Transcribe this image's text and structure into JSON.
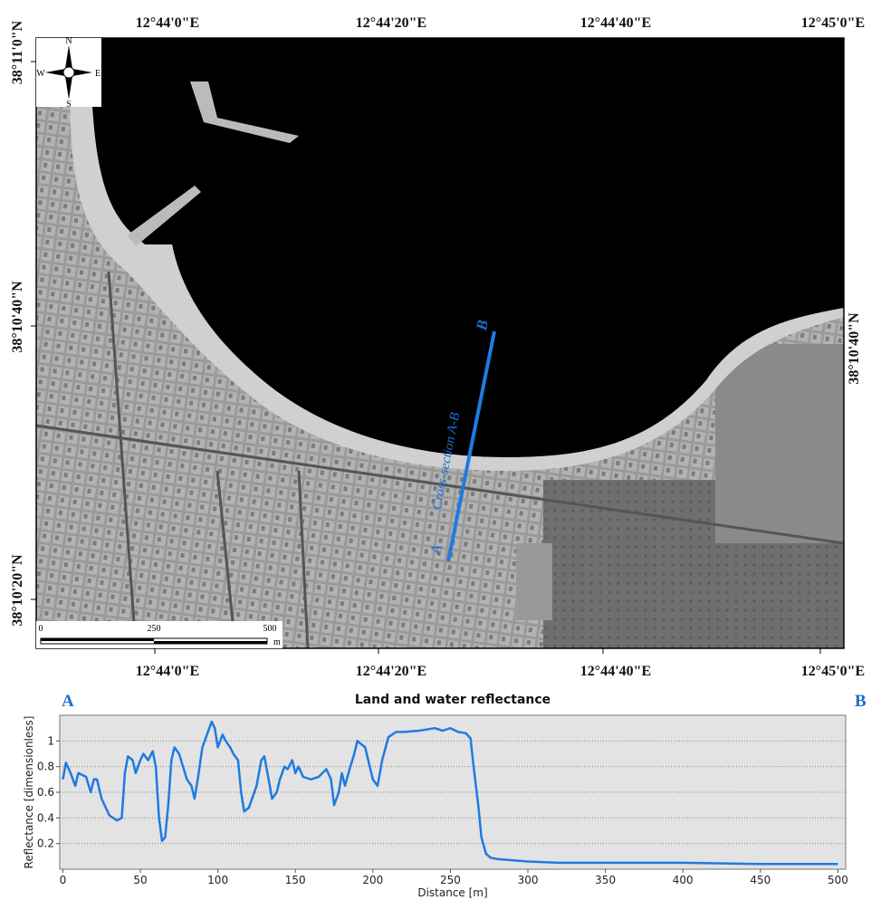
{
  "map": {
    "top_lon_labels": [
      "12°44'0\"E",
      "12°44'20\"E",
      "12°44'40\"E",
      "12°45'0\"E"
    ],
    "bottom_lon_labels": [
      "12°44'0\"E",
      "12°44'20\"E",
      "12°44'40\"E",
      "12°45'0\"E"
    ],
    "left_lat_labels": [
      "38°11'0\"N",
      "38°10'40\"N",
      "38°10'20\"N"
    ],
    "right_lat_labels": [
      "38°10'40\"N"
    ],
    "compass": {
      "north": "N",
      "south": "S",
      "east": "E",
      "west": "W"
    },
    "scale_bar": {
      "labels": [
        "0",
        "250",
        "500"
      ],
      "unit": "m"
    },
    "cross_section": {
      "label": "Cross-section A-B",
      "start": "A",
      "end": "B"
    }
  },
  "chart_data": {
    "type": "line",
    "title": "Land and water reflectance",
    "start_label": "A",
    "end_label": "B",
    "x_label": "Distance [m]",
    "y_label": "Reflectance [dimensionless]",
    "x": [
      0,
      2,
      5,
      8,
      10,
      15,
      18,
      20,
      22,
      25,
      30,
      35,
      38,
      40,
      42,
      45,
      47,
      50,
      52,
      55,
      58,
      60,
      62,
      64,
      66,
      68,
      70,
      72,
      75,
      78,
      80,
      83,
      85,
      87,
      90,
      93,
      96,
      98,
      100,
      103,
      105,
      108,
      110,
      113,
      115,
      117,
      120,
      125,
      128,
      130,
      132,
      135,
      138,
      140,
      143,
      145,
      148,
      150,
      152,
      155,
      160,
      165,
      170,
      173,
      175,
      178,
      180,
      182,
      185,
      188,
      190,
      195,
      198,
      200,
      203,
      206,
      210,
      215,
      220,
      230,
      240,
      245,
      250,
      255,
      260,
      263,
      265,
      268,
      270,
      273,
      276,
      280,
      290,
      300,
      320,
      350,
      400,
      450,
      500
    ],
    "series": [
      {
        "name": "Cross-section A-B",
        "color": "#1e7be0",
        "values": [
          0.7,
          0.83,
          0.75,
          0.65,
          0.75,
          0.72,
          0.6,
          0.7,
          0.7,
          0.55,
          0.42,
          0.38,
          0.4,
          0.75,
          0.88,
          0.85,
          0.75,
          0.85,
          0.9,
          0.85,
          0.92,
          0.8,
          0.4,
          0.22,
          0.25,
          0.5,
          0.85,
          0.95,
          0.9,
          0.78,
          0.7,
          0.65,
          0.55,
          0.7,
          0.95,
          1.05,
          1.15,
          1.1,
          0.95,
          1.05,
          1.0,
          0.95,
          0.9,
          0.85,
          0.6,
          0.45,
          0.48,
          0.65,
          0.85,
          0.88,
          0.75,
          0.55,
          0.6,
          0.7,
          0.8,
          0.78,
          0.85,
          0.75,
          0.8,
          0.72,
          0.7,
          0.72,
          0.78,
          0.7,
          0.5,
          0.6,
          0.75,
          0.65,
          0.78,
          0.9,
          1.0,
          0.95,
          0.8,
          0.7,
          0.65,
          0.85,
          1.03,
          1.07,
          1.07,
          1.08,
          1.1,
          1.08,
          1.1,
          1.07,
          1.06,
          1.02,
          0.8,
          0.5,
          0.25,
          0.12,
          0.09,
          0.08,
          0.07,
          0.06,
          0.05,
          0.05,
          0.05,
          0.04,
          0.04
        ]
      }
    ],
    "xlim": [
      -2,
      505
    ],
    "ylim": [
      0,
      1.2
    ],
    "xticks": [
      0,
      50,
      100,
      150,
      200,
      250,
      300,
      350,
      400,
      450,
      500
    ],
    "yticks": [
      0.2,
      0.4,
      0.6,
      0.8,
      1
    ],
    "grid": true
  }
}
